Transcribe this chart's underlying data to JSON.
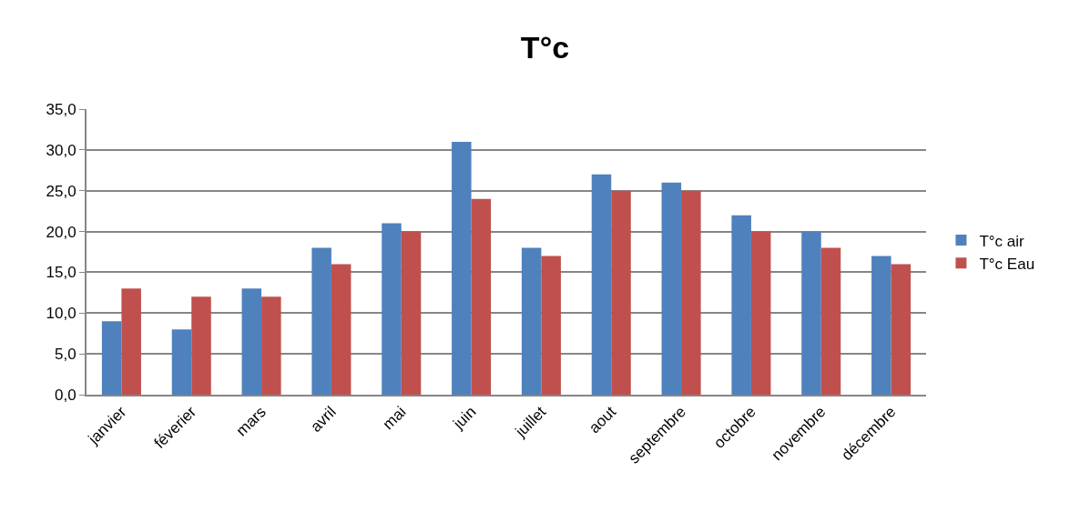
{
  "chart_data": {
    "type": "bar",
    "title": "T°c",
    "categories": [
      "janvier",
      "féverier",
      "mars",
      "avril",
      "mai",
      "juin",
      "juillet",
      "aout",
      "septembre",
      "octobre",
      "novembre",
      "décembre"
    ],
    "series": [
      {
        "name": "T°c air",
        "color": "#4f81bd",
        "values": [
          9,
          8,
          13,
          18,
          21,
          31,
          18,
          27,
          26,
          22,
          20,
          17
        ]
      },
      {
        "name": "T°c Eau",
        "color": "#c0504d",
        "values": [
          13,
          12,
          12,
          16,
          20,
          24,
          17,
          25,
          25,
          20,
          18,
          16
        ]
      }
    ],
    "ylim": [
      0,
      35
    ],
    "yticks": [
      {
        "value": 0,
        "label": "0,0"
      },
      {
        "value": 5,
        "label": "5,0"
      },
      {
        "value": 10,
        "label": "10,0"
      },
      {
        "value": 15,
        "label": "15,0"
      },
      {
        "value": 20,
        "label": "20,0"
      },
      {
        "value": 25,
        "label": "25,0"
      },
      {
        "value": 30,
        "label": "30,0"
      },
      {
        "value": 35,
        "label": "35,0"
      }
    ],
    "grid": "y",
    "legend": "right"
  }
}
